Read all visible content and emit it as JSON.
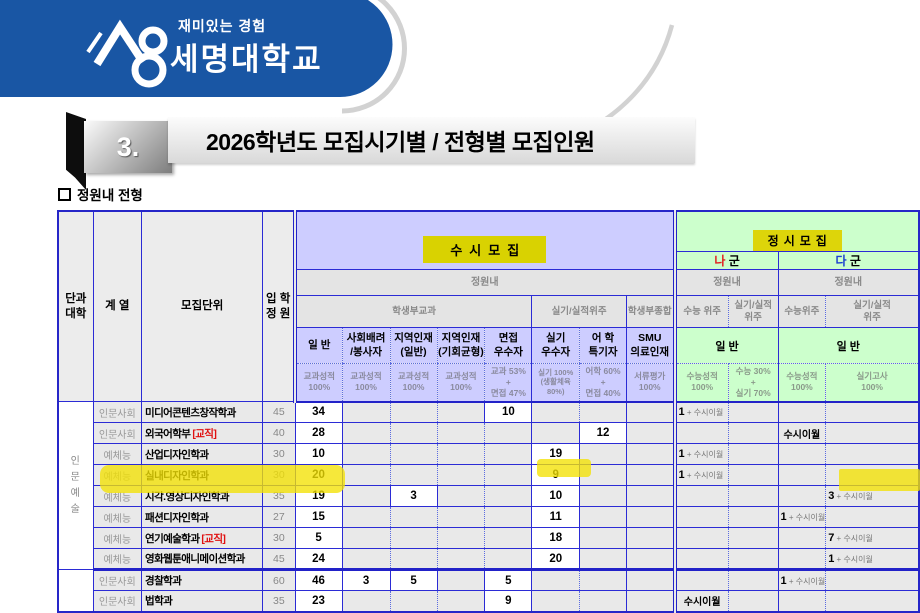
{
  "banner": {
    "tagline": "재미있는 경험",
    "university": "세명대학교"
  },
  "section": {
    "number": "3.",
    "title": "2026학년도  모집시기별 / 전형별  모집인원"
  },
  "subtitle": "정원내 전형",
  "colors": {
    "banner_blue": "#1956a4",
    "grid_blue": "#2b2bd5",
    "susi_lavender": "#cdcdff",
    "jeongsi_green": "#ccffcc",
    "highlight_yellow": "#f3e102",
    "label_yellow": "#d9d201",
    "gun_na_red": "#e02020",
    "gun_da_blue": "#1a3fd0"
  },
  "table": {
    "left_headers": {
      "college": "단과\n대학",
      "track": "계 열",
      "unit": "모집단위",
      "quota": "입 학\n정 원"
    },
    "susi": {
      "label": "수시모집",
      "jeongwonnae": "정원내",
      "cat_gyogwa": "학생부교과",
      "cat_silgi": "실기/실적위주",
      "cat_jonghap": "학생부종합",
      "columns": [
        {
          "name": "일 반",
          "criteria": "교과성적\n100%"
        },
        {
          "name": "사회배려\n/봉사자",
          "criteria": "교과성적\n100%"
        },
        {
          "name": "지역인재\n(일반)",
          "criteria": "교과성적\n100%"
        },
        {
          "name": "지역인재\n(기회균형)",
          "criteria": "교과성적\n100%"
        },
        {
          "name": "면접\n우수자",
          "criteria": "교과 53%\n+\n면접 47%"
        },
        {
          "name": "실기\n우수자",
          "criteria": "실기 100%\n(생활체육 80%)"
        },
        {
          "name": "어 학\n특기자",
          "criteria": "어학 60%\n+\n면접 40%"
        },
        {
          "name": "SMU\n의료인재",
          "criteria": "서류평가\n100%"
        }
      ]
    },
    "jeongsi": {
      "label": "정시모집",
      "na": {
        "gun_first": "나",
        "gun_rest": " 군",
        "jeongwonnae": "정원내",
        "cat1": "수능 위주",
        "cat2": "실기/실적\n위주",
        "ilban": "일 반",
        "crit1": "수능성적\n100%",
        "crit2": "수능 30%\n+\n실기 70%"
      },
      "da": {
        "gun_first": "다",
        "gun_rest": " 군",
        "jeongwonnae": "정원내",
        "cat1": "수능위주",
        "cat2": "실기/실적\n위주",
        "ilban": "일 반",
        "crit1": "수능성적\n100%",
        "crit2": "실기고사\n100%"
      }
    }
  },
  "rows": [
    {
      "college": {
        "label": "인문예술",
        "span": 8
      },
      "track": "인문사회",
      "dept": "미디어콘텐츠창작학과",
      "badge": "",
      "quota": "45",
      "cells": [
        "34",
        "",
        "",
        "",
        "10",
        "",
        "",
        "",
        "1 + 수시이월",
        "",
        "",
        ""
      ]
    },
    {
      "track": "인문사회",
      "dept": "외국어학부",
      "badge": "[교직]",
      "quota": "40",
      "cells": [
        "28",
        "",
        "",
        "",
        "",
        "",
        "12",
        "",
        "",
        "",
        "수시이월",
        ""
      ]
    },
    {
      "track": "예체능",
      "dept": "산업디자인학과",
      "badge": "",
      "quota": "30",
      "cells": [
        "10",
        "",
        "",
        "",
        "",
        "19",
        "",
        "",
        "1 + 수시이월",
        "",
        "",
        ""
      ]
    },
    {
      "track": "예체능",
      "dept": "실내디자인학과",
      "badge": "",
      "quota": "30",
      "cells": [
        "20",
        "",
        "",
        "",
        "",
        "9",
        "",
        "",
        "1 + 수시이월",
        "",
        "",
        ""
      ]
    },
    {
      "track": "예체능",
      "dept": "시각.영상디자인학과",
      "badge": "",
      "quota": "35",
      "highlighted": true,
      "cells": [
        "19",
        "",
        "3",
        "",
        "",
        "10",
        "",
        "",
        "",
        "",
        "",
        "3 + 수시이월"
      ]
    },
    {
      "track": "예체능",
      "dept": "패션디자인학과",
      "badge": "",
      "quota": "27",
      "cells": [
        "15",
        "",
        "",
        "",
        "",
        "11",
        "",
        "",
        "",
        "",
        "1 + 수시이월",
        ""
      ]
    },
    {
      "track": "예체능",
      "dept": "연기예술학과",
      "badge": "[교직]",
      "quota": "30",
      "cells": [
        "5",
        "",
        "",
        "",
        "",
        "18",
        "",
        "",
        "",
        "",
        "",
        "7 + 수시이월"
      ]
    },
    {
      "track": "예체능",
      "dept": "영화웹툰애니메이션학과",
      "badge": "",
      "quota": "45",
      "group_end": true,
      "cells": [
        "24",
        "",
        "",
        "",
        "",
        "20",
        "",
        "",
        "",
        "",
        "",
        "1 + 수시이월"
      ]
    },
    {
      "college": {
        "label": "",
        "span": 2
      },
      "track": "인문사회",
      "dept": "경찰학과",
      "badge": "",
      "quota": "60",
      "cells": [
        "46",
        "3",
        "5",
        "",
        "5",
        "",
        "",
        "",
        "",
        "",
        "1 + 수시이월",
        ""
      ]
    },
    {
      "track": "인문사회",
      "dept": "법학과",
      "badge": "",
      "quota": "35",
      "cells": [
        "23",
        "",
        "",
        "",
        "9",
        "",
        "",
        "",
        "수시이월",
        "",
        "",
        ""
      ]
    }
  ]
}
